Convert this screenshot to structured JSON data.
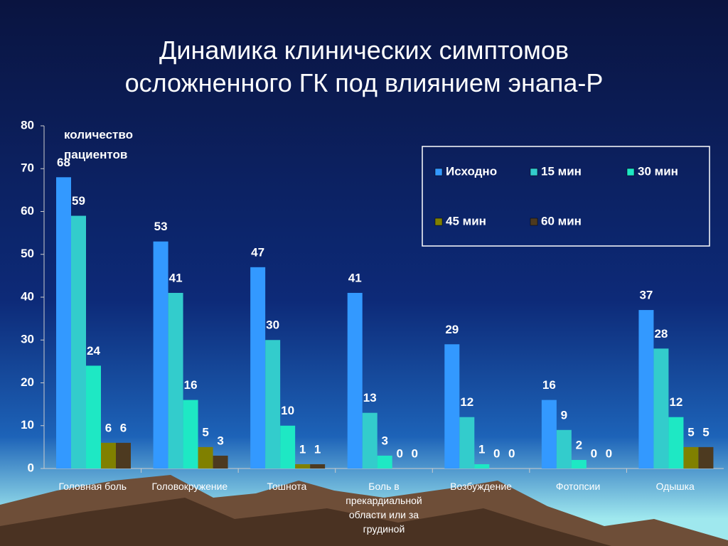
{
  "chart_data": {
    "type": "bar",
    "title": "Динамика клинических симптомов осложненного ГК под влиянием энапа-Р",
    "y_label": "количество пациентов",
    "categories": [
      "Головная боль",
      "Головокружение",
      "Тошнота",
      "Боль в прекардиальной области или за грудиной",
      "Возбуждение",
      "Фотопсии",
      "Одышка"
    ],
    "series": [
      {
        "name": "Исходно",
        "color": "#3399ff",
        "values": [
          68,
          53,
          47,
          41,
          29,
          16,
          37
        ]
      },
      {
        "name": "15 мин",
        "color": "#33cccc",
        "values": [
          59,
          41,
          30,
          13,
          12,
          9,
          28
        ]
      },
      {
        "name": "30 мин",
        "color": "#1ee8c4",
        "values": [
          24,
          16,
          10,
          3,
          1,
          2,
          12
        ]
      },
      {
        "name": "45 мин",
        "color": "#808000",
        "values": [
          6,
          5,
          1,
          0,
          0,
          0,
          5
        ]
      },
      {
        "name": "60 мин",
        "color": "#4d3a20",
        "values": [
          6,
          3,
          1,
          0,
          0,
          0,
          5
        ]
      }
    ],
    "ylim": [
      0,
      80
    ],
    "yticks": [
      0,
      10,
      20,
      30,
      40,
      50,
      60,
      70,
      80
    ],
    "legend": "upper right"
  }
}
